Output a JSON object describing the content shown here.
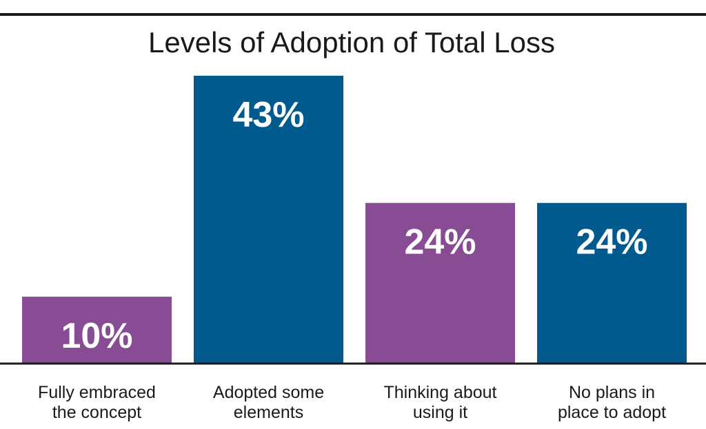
{
  "chart_data": {
    "type": "bar",
    "title": "Levels of Adoption of Total Loss",
    "categories": [
      [
        "Fully embraced",
        "the concept"
      ],
      [
        "Adopted some",
        "elements"
      ],
      [
        "Thinking about",
        "using it"
      ],
      [
        "No plans in",
        "place to adopt"
      ]
    ],
    "values": [
      10,
      43,
      24,
      24
    ],
    "value_labels": [
      "10%",
      "43%",
      "24%",
      "24%"
    ],
    "bar_colors": [
      "#874c93",
      "#005a8e",
      "#874c93",
      "#005a8e"
    ],
    "ylim": [
      0,
      45
    ],
    "grid": false,
    "legend": "none"
  },
  "colors": {
    "purple": "#874c93",
    "blue": "#005a8e",
    "rule": "#1a1a1a"
  }
}
